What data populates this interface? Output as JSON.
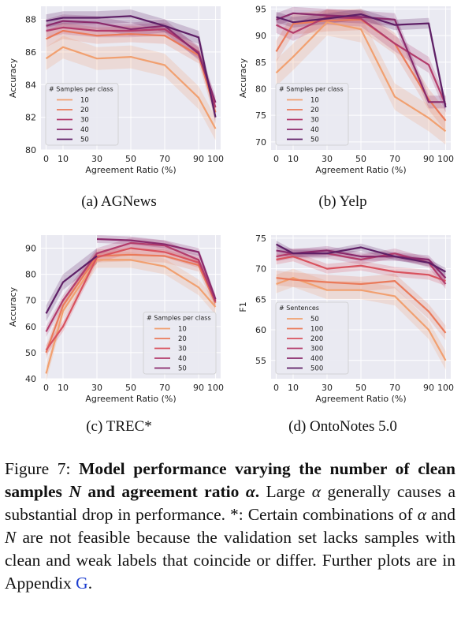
{
  "figure": {
    "label": "Figure 7:",
    "title_bold_a": "Model performance varying the number of clean samples",
    "title_n": "N",
    "title_bold_b": "and agreement ratio",
    "title_alpha": "α",
    "title_end": ".",
    "text1_pre": "Large",
    "text1_alpha": "α",
    "text1_post": "generally causes a substantial drop in performance.",
    "text2_a": "*: Certain combinations of",
    "text2_alpha": "α",
    "text2_b": "and",
    "text2_n": "N",
    "text2_c": "are not feasible because the validation set lacks samples with clean and weak labels that coincide or differ. Further plots are in Appendix",
    "appendix_ref": "G",
    "text2_end": "."
  },
  "palette": [
    "#f1a070",
    "#ea7a5a",
    "#d9525e",
    "#b33c6c",
    "#8a2a6c",
    "#5e1f66"
  ],
  "chart_data": [
    {
      "id": "agnews",
      "type": "line",
      "caption": "(a) AGNews",
      "xlabel": "Agreement Ratio (%)",
      "ylabel": "Accuracy",
      "xlim": [
        -3,
        103
      ],
      "ylim": [
        80,
        88.8
      ],
      "xticks": [
        0,
        10,
        30,
        50,
        70,
        90,
        100
      ],
      "xtick_labels": [
        "0",
        "10",
        "30",
        "50",
        "70",
        "90",
        "100"
      ],
      "yticks": [
        80,
        82,
        84,
        86,
        88
      ],
      "legend_title": "# Samples per class",
      "legend_position": "lower-left",
      "x": [
        0,
        10,
        30,
        50,
        70,
        90,
        100
      ],
      "series": [
        {
          "name": "10",
          "values": [
            85.6,
            86.3,
            85.6,
            85.7,
            85.2,
            83.2,
            81.3
          ],
          "band": 0.7
        },
        {
          "name": "20",
          "values": [
            86.8,
            87.3,
            87.0,
            87.1,
            87.0,
            85.8,
            82.3
          ],
          "band": 0.5
        },
        {
          "name": "30",
          "values": [
            87.3,
            87.5,
            87.3,
            87.3,
            87.4,
            86.0,
            82.6
          ],
          "band": 0.4
        },
        {
          "name": "40",
          "values": [
            87.6,
            87.9,
            87.8,
            87.4,
            87.6,
            85.9,
            82.9
          ],
          "band": 0.4
        },
        {
          "name": "50",
          "values": [
            87.9,
            88.1,
            88.1,
            88.2,
            87.6,
            86.9,
            82.0
          ],
          "band": 0.4
        }
      ]
    },
    {
      "id": "yelp",
      "type": "line",
      "caption": "(b) Yelp",
      "xlabel": "Agreement Ratio (%)",
      "ylabel": "Accuracy",
      "xlim": [
        -3,
        103
      ],
      "ylim": [
        68.5,
        95.5
      ],
      "xticks": [
        0,
        10,
        30,
        50,
        70,
        90,
        100
      ],
      "xtick_labels": [
        "0",
        "10",
        "30",
        "50",
        "70",
        "90",
        "100"
      ],
      "yticks": [
        70,
        75,
        80,
        85,
        90,
        95
      ],
      "legend_title": "# Samples per class",
      "legend_position": "lower-left",
      "x": [
        0,
        10,
        30,
        50,
        70,
        90,
        100
      ],
      "series": [
        {
          "name": "10",
          "values": [
            83.0,
            86.0,
            92.5,
            91.2,
            78.5,
            74.5,
            72.0
          ],
          "band": 2.5
        },
        {
          "name": "20",
          "values": [
            87.0,
            92.2,
            92.8,
            93.0,
            88.5,
            78.0,
            74.0
          ],
          "band": 2.0
        },
        {
          "name": "30",
          "values": [
            92.0,
            90.5,
            93.5,
            93.2,
            88.5,
            84.5,
            77.0
          ],
          "band": 1.5
        },
        {
          "name": "40",
          "values": [
            93.0,
            94.2,
            93.8,
            93.5,
            93.0,
            77.5,
            77.5
          ],
          "band": 1.2
        },
        {
          "name": "50",
          "values": [
            93.5,
            92.5,
            93.2,
            94.0,
            92.0,
            92.3,
            76.5
          ],
          "band": 1.0
        }
      ]
    },
    {
      "id": "trec",
      "type": "line",
      "caption": "(c) TREC*",
      "xlabel": "Agreement Ratio (%)",
      "ylabel": "Accuracy",
      "xlim": [
        -3,
        103
      ],
      "ylim": [
        40,
        95
      ],
      "xticks": [
        0,
        10,
        30,
        50,
        70,
        90,
        100
      ],
      "xtick_labels": [
        "0",
        "10",
        "30",
        "50",
        "70",
        "90",
        "100"
      ],
      "yticks": [
        40,
        50,
        60,
        70,
        80,
        90
      ],
      "legend_title": "# Samples per class",
      "legend_position": "lower-right",
      "x": [
        0,
        10,
        30,
        50,
        70,
        90,
        100
      ],
      "series": [
        {
          "name": "10",
          "values": [
            42.0,
            66.0,
            85.5,
            85.5,
            83.0,
            75.0,
            67.5
          ],
          "band": 3.0
        },
        {
          "name": "20",
          "values": [
            50.0,
            68.0,
            87.0,
            87.5,
            87.0,
            83.5,
            69.0
          ],
          "band": 2.5
        },
        {
          "name": "30",
          "values": [
            51.0,
            60.0,
            86.5,
            90.0,
            88.5,
            84.5,
            70.0
          ],
          "band": 2.0
        },
        {
          "name": "40",
          "values": [
            58.0,
            70.0,
            88.0,
            92.0,
            91.0,
            85.5,
            69.5
          ],
          "band": 2.0
        },
        {
          "name": "50",
          "values": [
            null,
            null,
            93.5,
            93.0,
            91.5,
            88.5,
            70.5
          ],
          "band": 1.5
        },
        {
          "name": "",
          "values": [
            65.0,
            77.0,
            87.0,
            null,
            null,
            null,
            null
          ],
          "band": 3.0
        }
      ]
    },
    {
      "id": "ontonotes",
      "type": "line",
      "caption": "(d) OntoNotes 5.0",
      "xlabel": "Agreement Ratio (%)",
      "ylabel": "F1",
      "xlim": [
        -3,
        103
      ],
      "ylim": [
        52,
        75.5
      ],
      "xticks": [
        0,
        10,
        30,
        50,
        70,
        90,
        100
      ],
      "xtick_labels": [
        "0",
        "10",
        "30",
        "50",
        "70",
        "90",
        "100"
      ],
      "yticks": [
        55,
        60,
        65,
        70,
        75
      ],
      "legend_title": "# Sentences",
      "legend_position": "lower-left",
      "x": [
        0,
        10,
        30,
        50,
        70,
        90,
        100
      ],
      "series": [
        {
          "name": "50",
          "values": [
            67.5,
            68.5,
            66.5,
            66.5,
            65.5,
            60.0,
            55.0
          ],
          "band": 1.5
        },
        {
          "name": "100",
          "values": [
            68.5,
            68.2,
            67.8,
            67.5,
            68.0,
            63.0,
            59.5
          ],
          "band": 1.2
        },
        {
          "name": "200",
          "values": [
            71.5,
            72.0,
            70.0,
            70.5,
            69.5,
            69.0,
            68.0
          ],
          "band": 0.8
        },
        {
          "name": "300",
          "values": [
            72.0,
            72.5,
            72.5,
            71.5,
            72.5,
            71.0,
            67.5
          ],
          "band": 0.8
        },
        {
          "name": "400",
          "values": [
            73.0,
            72.5,
            73.0,
            72.0,
            72.0,
            71.5,
            68.5
          ],
          "band": 0.7
        },
        {
          "name": "500",
          "values": [
            74.0,
            72.5,
            72.5,
            73.5,
            72.0,
            71.0,
            69.5
          ],
          "band": 0.6
        }
      ]
    }
  ]
}
